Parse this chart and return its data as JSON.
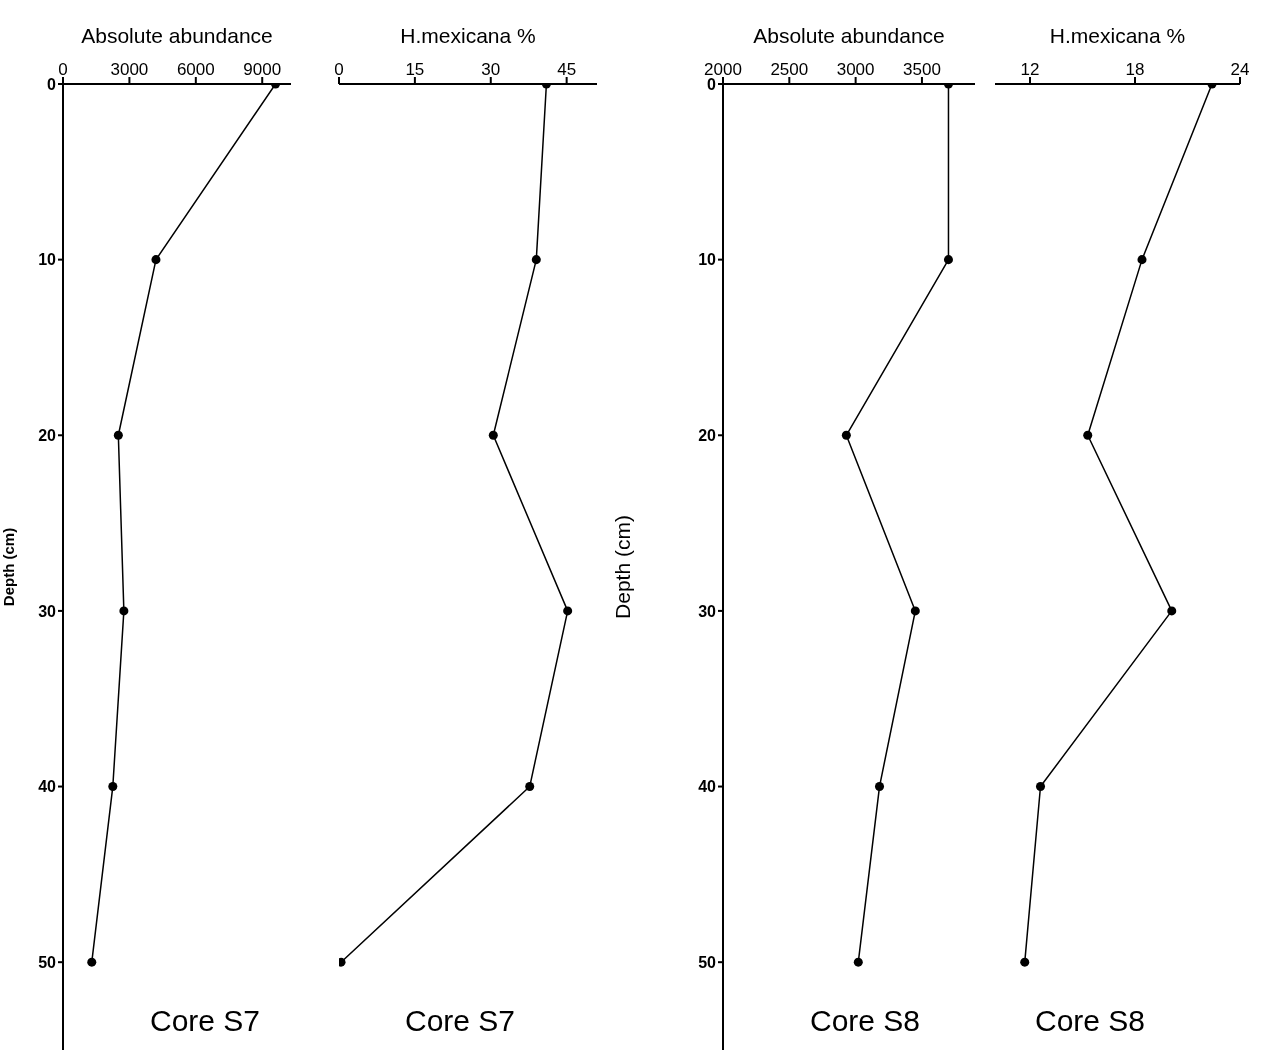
{
  "chart_data": [
    {
      "type": "line",
      "orientation": "horizontal",
      "xlabel": "Absolute abundance",
      "ylabel": "Depth (cm)",
      "x": [
        0,
        10,
        20,
        30,
        40,
        50
      ],
      "series": [
        {
          "color": "#000000",
          "values": [
            9600,
            4200,
            2500,
            2750,
            2250,
            1300
          ]
        }
      ],
      "xlim": [
        0,
        10300
      ],
      "xticks": [
        0,
        3000,
        6000,
        9000
      ],
      "ylim": [
        55,
        0
      ],
      "yticks": [
        0,
        10,
        20,
        30,
        40,
        50
      ],
      "marker": "circle",
      "line_style": "solid",
      "grid": false,
      "legend": false,
      "annotations": [
        "Core S7"
      ]
    },
    {
      "type": "line",
      "orientation": "horizontal",
      "xlabel": "H.mexicana %",
      "x": [
        0,
        10,
        20,
        30,
        40,
        50
      ],
      "series": [
        {
          "color": "#000000",
          "values": [
            41,
            39,
            30.5,
            45.2,
            37.7,
            0.4
          ]
        }
      ],
      "xlim": [
        0,
        51
      ],
      "xticks": [
        0,
        15,
        30,
        45
      ],
      "ylim": [
        55,
        0
      ],
      "yticks": [
        0,
        10,
        20,
        30,
        40,
        50
      ],
      "tick_labels": "x",
      "marker": "circle",
      "line_style": "solid",
      "grid": false,
      "legend": false,
      "annotations": [
        "Core S7"
      ]
    },
    {
      "type": "line",
      "orientation": "horizontal",
      "xlabel": "Absolute abundance",
      "ylabel": "Depth (cm)",
      "x": [
        0,
        10,
        20,
        30,
        40,
        50
      ],
      "series": [
        {
          "color": "#000000",
          "values": [
            3700,
            3700,
            2930,
            3450,
            3180,
            3020
          ]
        }
      ],
      "xlim": [
        2000,
        3900
      ],
      "xticks": [
        2000,
        2500,
        3000,
        3500
      ],
      "ylim": [
        55,
        0
      ],
      "yticks": [
        0,
        10,
        20,
        30,
        40,
        50
      ],
      "marker": "circle",
      "line_style": "solid",
      "grid": false,
      "legend": false,
      "annotations": [
        "Core S8"
      ]
    },
    {
      "type": "line",
      "orientation": "horizontal",
      "xlabel": "H.mexicana %",
      "x": [
        0,
        10,
        20,
        30,
        40,
        50
      ],
      "series": [
        {
          "color": "#000000",
          "values": [
            22.4,
            18.4,
            15.3,
            20.1,
            12.6,
            11.7
          ]
        }
      ],
      "xlim": [
        10,
        24
      ],
      "xticks": [
        12,
        18,
        24
      ],
      "ylim": [
        55,
        0
      ],
      "yticks": [
        0,
        10,
        20,
        30,
        40,
        50
      ],
      "tick_labels": "x",
      "marker": "circle",
      "line_style": "solid",
      "grid": false,
      "legend": false,
      "annotations": [
        "Core S8"
      ]
    }
  ]
}
